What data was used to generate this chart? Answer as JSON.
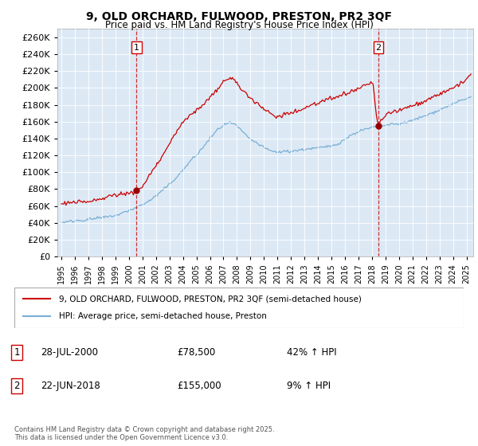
{
  "title": "9, OLD ORCHARD, FULWOOD, PRESTON, PR2 3QF",
  "subtitle": "Price paid vs. HM Land Registry's House Price Index (HPI)",
  "legend_line1": "9, OLD ORCHARD, FULWOOD, PRESTON, PR2 3QF (semi-detached house)",
  "legend_line2": "HPI: Average price, semi-detached house, Preston",
  "footer": "Contains HM Land Registry data © Crown copyright and database right 2025.\nThis data is licensed under the Open Government Licence v3.0.",
  "annotation1_date": "28-JUL-2000",
  "annotation1_price": "£78,500",
  "annotation1_hpi": "42% ↑ HPI",
  "annotation2_date": "22-JUN-2018",
  "annotation2_price": "£155,000",
  "annotation2_hpi": "9% ↑ HPI",
  "sale1_x": 2000.57,
  "sale1_y": 78500,
  "sale2_x": 2018.47,
  "sale2_y": 155000,
  "vline1_x": 2000.57,
  "vline2_x": 2018.47,
  "ylim": [
    0,
    270000
  ],
  "xlim": [
    1994.7,
    2025.5
  ],
  "ytick_step": 20000,
  "red_color": "#cc0000",
  "blue_color": "#7aafd4",
  "bg_color": "#ffffff",
  "plot_bg_color": "#dce9f5",
  "grid_color": "#ffffff",
  "vline_color": "#cc0000"
}
